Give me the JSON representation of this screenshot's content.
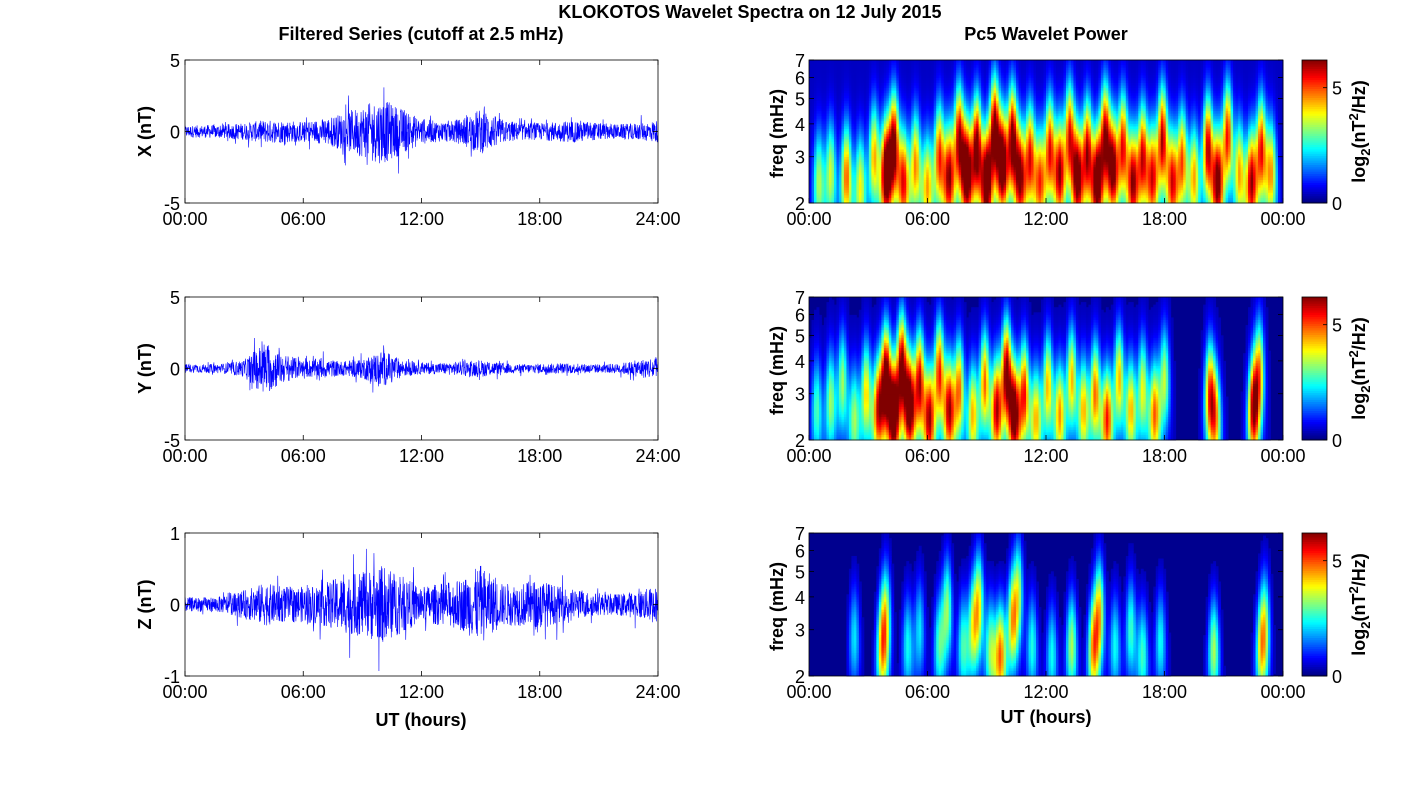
{
  "figure": {
    "title": "KLOKOTOS Wavelet Spectra on 12 July 2015",
    "left_title": "Filtered Series (cutoff at 2.5 mHz)",
    "right_title": "Pc5 Wavelet Power",
    "xlabel": "UT (hours)"
  },
  "chart_data": [
    {
      "type": "line",
      "component": "X",
      "ylabel": "X (nT)",
      "xlim_hours": [
        0,
        24
      ],
      "xticks": [
        "00:00",
        "06:00",
        "12:00",
        "18:00",
        "24:00"
      ],
      "ylim": [
        -5,
        5
      ],
      "yticks": [
        "5",
        "0",
        "-5"
      ],
      "line_color": "#0000ff",
      "envelope_hours": [
        0,
        1,
        2,
        3,
        4,
        5,
        6,
        7,
        8,
        9,
        10,
        11,
        12,
        13,
        14,
        15,
        16,
        17,
        18,
        19,
        20,
        21,
        22,
        23,
        24
      ],
      "envelope_amplitude_nT": [
        0.4,
        0.45,
        0.5,
        0.6,
        0.8,
        0.8,
        0.7,
        0.9,
        1.3,
        1.8,
        2.3,
        1.6,
        0.9,
        0.7,
        0.9,
        1.6,
        0.9,
        0.6,
        0.6,
        0.7,
        0.8,
        0.6,
        0.5,
        0.6,
        0.8
      ]
    },
    {
      "type": "line",
      "component": "Y",
      "ylabel": "Y (nT)",
      "xlim_hours": [
        0,
        24
      ],
      "xticks": [
        "00:00",
        "06:00",
        "12:00",
        "18:00",
        "24:00"
      ],
      "ylim": [
        -5,
        5
      ],
      "yticks": [
        "5",
        "0",
        "-5"
      ],
      "line_color": "#0000ff",
      "envelope_hours": [
        0,
        1,
        2,
        3,
        4,
        5,
        6,
        7,
        8,
        9,
        10,
        11,
        12,
        13,
        14,
        15,
        16,
        17,
        18,
        19,
        20,
        21,
        22,
        23,
        24
      ],
      "envelope_amplitude_nT": [
        0.3,
        0.3,
        0.35,
        0.6,
        1.9,
        1.0,
        0.6,
        0.7,
        0.5,
        0.7,
        1.3,
        0.6,
        0.4,
        0.4,
        0.5,
        0.6,
        0.4,
        0.3,
        0.35,
        0.35,
        0.35,
        0.3,
        0.35,
        0.6,
        0.9
      ]
    },
    {
      "type": "line",
      "component": "Z",
      "ylabel": "Z (nT)",
      "xlim_hours": [
        0,
        24
      ],
      "xticks": [
        "00:00",
        "06:00",
        "12:00",
        "18:00",
        "24:00"
      ],
      "ylim": [
        -1,
        1
      ],
      "yticks": [
        "1",
        "0",
        "-1"
      ],
      "line_color": "#0000ff",
      "envelope_hours": [
        0,
        1,
        2,
        3,
        4,
        5,
        6,
        7,
        8,
        9,
        10,
        11,
        12,
        13,
        14,
        15,
        16,
        17,
        18,
        19,
        20,
        21,
        22,
        23,
        24
      ],
      "envelope_amplitude_nT": [
        0.1,
        0.1,
        0.12,
        0.2,
        0.3,
        0.25,
        0.25,
        0.3,
        0.4,
        0.45,
        0.55,
        0.4,
        0.25,
        0.3,
        0.35,
        0.55,
        0.3,
        0.3,
        0.35,
        0.25,
        0.2,
        0.15,
        0.15,
        0.2,
        0.25
      ]
    },
    {
      "type": "heatmap",
      "component": "X",
      "ylabel": "freq (mHz)",
      "yscale": "log",
      "ylim_mHz": [
        2,
        7
      ],
      "yticks": [
        "7",
        "6",
        "5",
        "4",
        "3",
        "2"
      ],
      "xlim_hours": [
        0,
        24
      ],
      "xticks": [
        "00:00",
        "06:00",
        "12:00",
        "18:00",
        "00:00"
      ],
      "colormap": "jet",
      "colorbar_label": "log2(nT^2/Hz)",
      "colorbar_ticks": [
        "5",
        "0"
      ],
      "clim": [
        0,
        6.2
      ],
      "background_level": 0.4,
      "bursts": [
        {
          "t": 0.5,
          "f": 2.4,
          "p": 3.0
        },
        {
          "t": 1.1,
          "f": 2.6,
          "p": 3.2
        },
        {
          "t": 1.9,
          "f": 2.5,
          "p": 4.5
        },
        {
          "t": 2.6,
          "f": 2.3,
          "p": 3.5
        },
        {
          "t": 3.3,
          "f": 3.0,
          "p": 4.0
        },
        {
          "t": 3.9,
          "f": 2.6,
          "p": 6.5
        },
        {
          "t": 4.3,
          "f": 3.3,
          "p": 6.0
        },
        {
          "t": 4.8,
          "f": 2.4,
          "p": 5.0
        },
        {
          "t": 5.4,
          "f": 2.8,
          "p": 4.2
        },
        {
          "t": 6.0,
          "f": 2.3,
          "p": 4.0
        },
        {
          "t": 6.6,
          "f": 3.0,
          "p": 4.8
        },
        {
          "t": 7.1,
          "f": 2.5,
          "p": 5.5
        },
        {
          "t": 7.6,
          "f": 3.5,
          "p": 5.5
        },
        {
          "t": 8.0,
          "f": 2.6,
          "p": 6.5
        },
        {
          "t": 8.5,
          "f": 3.2,
          "p": 6.2
        },
        {
          "t": 9.0,
          "f": 2.4,
          "p": 6.5
        },
        {
          "t": 9.4,
          "f": 3.8,
          "p": 6.0
        },
        {
          "t": 9.8,
          "f": 2.8,
          "p": 6.5
        },
        {
          "t": 10.3,
          "f": 3.5,
          "p": 6.0
        },
        {
          "t": 10.7,
          "f": 2.5,
          "p": 5.5
        },
        {
          "t": 11.2,
          "f": 3.0,
          "p": 5.0
        },
        {
          "t": 11.7,
          "f": 2.4,
          "p": 4.5
        },
        {
          "t": 12.2,
          "f": 3.2,
          "p": 5.0
        },
        {
          "t": 12.7,
          "f": 2.6,
          "p": 5.5
        },
        {
          "t": 13.2,
          "f": 3.6,
          "p": 5.0
        },
        {
          "t": 13.6,
          "f": 2.5,
          "p": 6.0
        },
        {
          "t": 14.1,
          "f": 3.1,
          "p": 5.5
        },
        {
          "t": 14.6,
          "f": 2.4,
          "p": 6.3
        },
        {
          "t": 15.0,
          "f": 3.6,
          "p": 5.5
        },
        {
          "t": 15.4,
          "f": 2.7,
          "p": 5.8
        },
        {
          "t": 15.9,
          "f": 3.3,
          "p": 5.0
        },
        {
          "t": 16.4,
          "f": 2.4,
          "p": 5.5
        },
        {
          "t": 16.9,
          "f": 3.0,
          "p": 5.2
        },
        {
          "t": 17.4,
          "f": 2.5,
          "p": 5.0
        },
        {
          "t": 17.9,
          "f": 3.5,
          "p": 5.5
        },
        {
          "t": 18.4,
          "f": 2.4,
          "p": 5.0
        },
        {
          "t": 18.9,
          "f": 2.9,
          "p": 4.5
        },
        {
          "t": 19.5,
          "f": 2.5,
          "p": 4.0
        },
        {
          "t": 20.2,
          "f": 3.2,
          "p": 5.5
        },
        {
          "t": 20.7,
          "f": 2.4,
          "p": 6.0
        },
        {
          "t": 21.2,
          "f": 3.6,
          "p": 5.0
        },
        {
          "t": 21.8,
          "f": 2.6,
          "p": 4.0
        },
        {
          "t": 22.4,
          "f": 2.4,
          "p": 5.5
        },
        {
          "t": 22.9,
          "f": 3.2,
          "p": 5.0
        },
        {
          "t": 23.4,
          "f": 2.6,
          "p": 4.0
        }
      ]
    },
    {
      "type": "heatmap",
      "component": "Y",
      "ylabel": "freq (mHz)",
      "yscale": "log",
      "ylim_mHz": [
        2,
        7
      ],
      "yticks": [
        "7",
        "6",
        "5",
        "4",
        "3",
        "2"
      ],
      "xlim_hours": [
        0,
        24
      ],
      "xticks": [
        "00:00",
        "06:00",
        "12:00",
        "18:00",
        "00:00"
      ],
      "colormap": "jet",
      "colorbar_label": "log2(nT^2/Hz)",
      "colorbar_ticks": [
        "5",
        "0"
      ],
      "clim": [
        0,
        6.2
      ],
      "background_level": 0.3,
      "bursts": [
        {
          "t": 0.4,
          "f": 2.6,
          "p": 2.5
        },
        {
          "t": 1.1,
          "f": 2.8,
          "p": 3.0
        },
        {
          "t": 1.7,
          "f": 3.3,
          "p": 3.0
        },
        {
          "t": 2.3,
          "f": 2.4,
          "p": 3.0
        },
        {
          "t": 2.9,
          "f": 3.0,
          "p": 3.8
        },
        {
          "t": 3.5,
          "f": 2.6,
          "p": 5.0
        },
        {
          "t": 3.9,
          "f": 3.4,
          "p": 6.5
        },
        {
          "t": 4.3,
          "f": 2.5,
          "p": 6.5
        },
        {
          "t": 4.7,
          "f": 3.8,
          "p": 6.0
        },
        {
          "t": 5.1,
          "f": 2.7,
          "p": 6.5
        },
        {
          "t": 5.6,
          "f": 3.3,
          "p": 5.5
        },
        {
          "t": 6.1,
          "f": 2.4,
          "p": 5.5
        },
        {
          "t": 6.6,
          "f": 3.6,
          "p": 5.0
        },
        {
          "t": 7.1,
          "f": 2.6,
          "p": 5.5
        },
        {
          "t": 7.6,
          "f": 3.1,
          "p": 4.5
        },
        {
          "t": 8.3,
          "f": 2.5,
          "p": 4.0
        },
        {
          "t": 8.9,
          "f": 3.3,
          "p": 4.5
        },
        {
          "t": 9.5,
          "f": 2.6,
          "p": 5.5
        },
        {
          "t": 10.0,
          "f": 3.6,
          "p": 6.0
        },
        {
          "t": 10.4,
          "f": 2.5,
          "p": 6.2
        },
        {
          "t": 10.9,
          "f": 3.0,
          "p": 5.0
        },
        {
          "t": 11.5,
          "f": 2.4,
          "p": 4.0
        },
        {
          "t": 12.1,
          "f": 3.2,
          "p": 4.0
        },
        {
          "t": 12.7,
          "f": 2.5,
          "p": 4.2
        },
        {
          "t": 13.3,
          "f": 3.4,
          "p": 4.0
        },
        {
          "t": 13.9,
          "f": 2.6,
          "p": 4.0
        },
        {
          "t": 14.5,
          "f": 3.0,
          "p": 4.5
        },
        {
          "t": 15.1,
          "f": 2.4,
          "p": 5.0
        },
        {
          "t": 15.7,
          "f": 3.4,
          "p": 4.0
        },
        {
          "t": 16.3,
          "f": 2.6,
          "p": 4.0
        },
        {
          "t": 16.9,
          "f": 3.1,
          "p": 3.5
        },
        {
          "t": 17.5,
          "f": 2.5,
          "p": 4.5
        },
        {
          "t": 18.0,
          "f": 3.4,
          "p": 3.2
        },
        {
          "t": 20.3,
          "f": 3.0,
          "p": 4.5
        },
        {
          "t": 20.6,
          "f": 2.4,
          "p": 3.5
        },
        {
          "t": 22.5,
          "f": 2.6,
          "p": 5.5
        },
        {
          "t": 22.8,
          "f": 3.6,
          "p": 4.0
        }
      ]
    },
    {
      "type": "heatmap",
      "component": "Z",
      "ylabel": "freq (mHz)",
      "yscale": "log",
      "ylim_mHz": [
        2,
        7
      ],
      "yticks": [
        "7",
        "6",
        "5",
        "4",
        "3",
        "2"
      ],
      "xlim_hours": [
        0,
        24
      ],
      "xticks": [
        "00:00",
        "06:00",
        "12:00",
        "18:00",
        "00:00"
      ],
      "colormap": "jet",
      "colorbar_label": "log2(nT^2/Hz)",
      "colorbar_ticks": [
        "5",
        "0"
      ],
      "clim": [
        0,
        6.2
      ],
      "background_level": 0.2,
      "bursts": [
        {
          "t": 2.3,
          "f": 2.8,
          "p": 2.0
        },
        {
          "t": 3.7,
          "f": 2.5,
          "p": 3.6
        },
        {
          "t": 3.9,
          "f": 3.4,
          "p": 3.0
        },
        {
          "t": 5.0,
          "f": 2.6,
          "p": 2.2
        },
        {
          "t": 5.6,
          "f": 3.0,
          "p": 2.0
        },
        {
          "t": 6.6,
          "f": 2.6,
          "p": 2.5
        },
        {
          "t": 7.0,
          "f": 3.6,
          "p": 3.0
        },
        {
          "t": 7.8,
          "f": 2.6,
          "p": 2.5
        },
        {
          "t": 8.3,
          "f": 3.0,
          "p": 3.0
        },
        {
          "t": 8.6,
          "f": 3.8,
          "p": 3.5
        },
        {
          "t": 9.2,
          "f": 2.5,
          "p": 3.0
        },
        {
          "t": 9.7,
          "f": 2.4,
          "p": 4.5
        },
        {
          "t": 10.3,
          "f": 3.2,
          "p": 3.8
        },
        {
          "t": 10.6,
          "f": 4.2,
          "p": 3.0
        },
        {
          "t": 11.3,
          "f": 2.6,
          "p": 2.3
        },
        {
          "t": 12.3,
          "f": 2.4,
          "p": 2.2
        },
        {
          "t": 13.3,
          "f": 2.6,
          "p": 3.2
        },
        {
          "t": 14.4,
          "f": 2.5,
          "p": 4.0
        },
        {
          "t": 14.7,
          "f": 3.5,
          "p": 3.8
        },
        {
          "t": 15.5,
          "f": 2.6,
          "p": 2.2
        },
        {
          "t": 16.3,
          "f": 3.0,
          "p": 2.5
        },
        {
          "t": 16.9,
          "f": 2.4,
          "p": 2.5
        },
        {
          "t": 17.8,
          "f": 2.7,
          "p": 2.2
        },
        {
          "t": 20.5,
          "f": 2.5,
          "p": 3.2
        },
        {
          "t": 22.9,
          "f": 2.5,
          "p": 3.2
        },
        {
          "t": 23.1,
          "f": 3.2,
          "p": 2.5
        }
      ]
    }
  ]
}
